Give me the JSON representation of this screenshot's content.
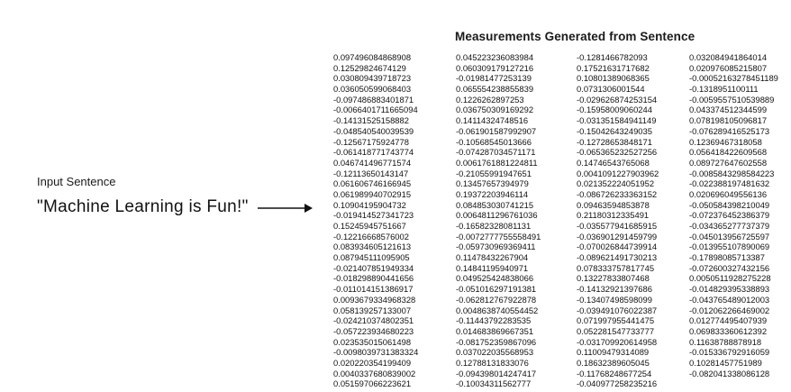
{
  "title": "Measurements Generated from Sentence",
  "input_label": "Input Sentence",
  "input_sentence": "\"Machine Learning is Fun!\"",
  "columns": [
    [
      "0.097496084868908",
      "0.12529824674129",
      "0.030809439718723",
      "0.036050599068403",
      "-0.097486883401871",
      "-0.0066401711665094",
      "-0.14131525158882",
      "-0.048540540039539",
      "-0.12567175924778",
      "-0.061418771743774",
      "0.046741496771574",
      "-0.12113650143147",
      "0.061606746166945",
      "0.061989940702915",
      "0.10904195904732",
      "-0.019414527341723",
      "0.15245945751667",
      "-0.12216668576002",
      "0.083934605121613",
      "0.087945111095905",
      "-0.021407851949334",
      "-0.018298890441656",
      "-0.011014151386917",
      "0.0093679334968328",
      "0.058139257133007",
      "-0.024210374802351",
      "-0.057223934680223",
      "0.023535015061498",
      "-0.0098039731383324",
      "0.020220354199409",
      "0.0040337680839002",
      "0.051597066223621"
    ],
    [
      "0.045223236083984",
      "0.060309179127216",
      "-0.01981477253139",
      "0.065554238855839",
      "0.1226262897253",
      "0.036750309169292",
      "0.14114324748516",
      "-0.061901587992907",
      "-0.10568545013666",
      "-0.074287034571171",
      "0.0061761881224811",
      "-0.21055991947651",
      "0.13457657394979",
      "0.19372203946114",
      "0.084853030741215",
      "0.0064811296761036",
      "-0.16582328081131",
      "-0.0072777755558491",
      "-0.059730969369411",
      "0.11478432267904",
      "0.14841195940971",
      "0.049525424838066",
      "-0.051016297191381",
      "-0.062812767922878",
      "0.0048638740554452",
      "-0.11443792283535",
      "0.014683869667351",
      "-0.081752359867096",
      "0.037022035568953",
      "0.12788131833076",
      "-0.094398014247417",
      "-0.10034311562777"
    ],
    [
      "-0.1281466782093",
      "0.17521631717682",
      "0.10801389068365",
      "0.0731306001544",
      "-0.029626874253154",
      "-0.15958009060244",
      "-0.031351584941149",
      "-0.15042643249035",
      "-0.12728653848171",
      "-0.065365232527256",
      "0.14746543765068",
      "0.0041091227903962",
      "0.021352224051952",
      "-0.086726233363152",
      "0.09463594853878",
      "0.21180312335491",
      "-0.035577941685915",
      "-0.036901291459799",
      "-0.070026844739914",
      "-0.089621491730213",
      "0.078333757817745",
      "0.13227833807468",
      "-0.14132921397686",
      "-0.13407498598099",
      "-0.039491076022387",
      "0.071997955441475",
      "0.052281547733777",
      "-0.031709920614958",
      "0.11009479314089",
      "0.18632389605045",
      "-0.11768248677254",
      "-0.040977258235216"
    ],
    [
      "0.032084941864014",
      "0.020976085215807",
      "-0.00052163278451189",
      "-0.1318951100111",
      "-0.0059557510539889",
      "0.043374512344599",
      "0.078198105096817",
      "-0.076289416525173",
      "0.12369467318058",
      "0.056418422609568",
      "0.089727647602558",
      "-0.0085843298584223",
      "-0.022388197481632",
      "0.020696049556136",
      "-0.050584398210049",
      "-0.072376452386379",
      "-0.034365277737379",
      "-0.045013956725597",
      "-0.013955107890069",
      "-0.17898085713387",
      "-0.072600327432156",
      "0.0050511928275228",
      "-0.014829395338893",
      "-0.043765489012003",
      "-0.012062266469002",
      "0.012774495407939",
      "0.069833360612392",
      "0.11638788878918",
      "-0.015336792916059",
      "0.10281457751989",
      "-0.082041338086128"
    ]
  ]
}
